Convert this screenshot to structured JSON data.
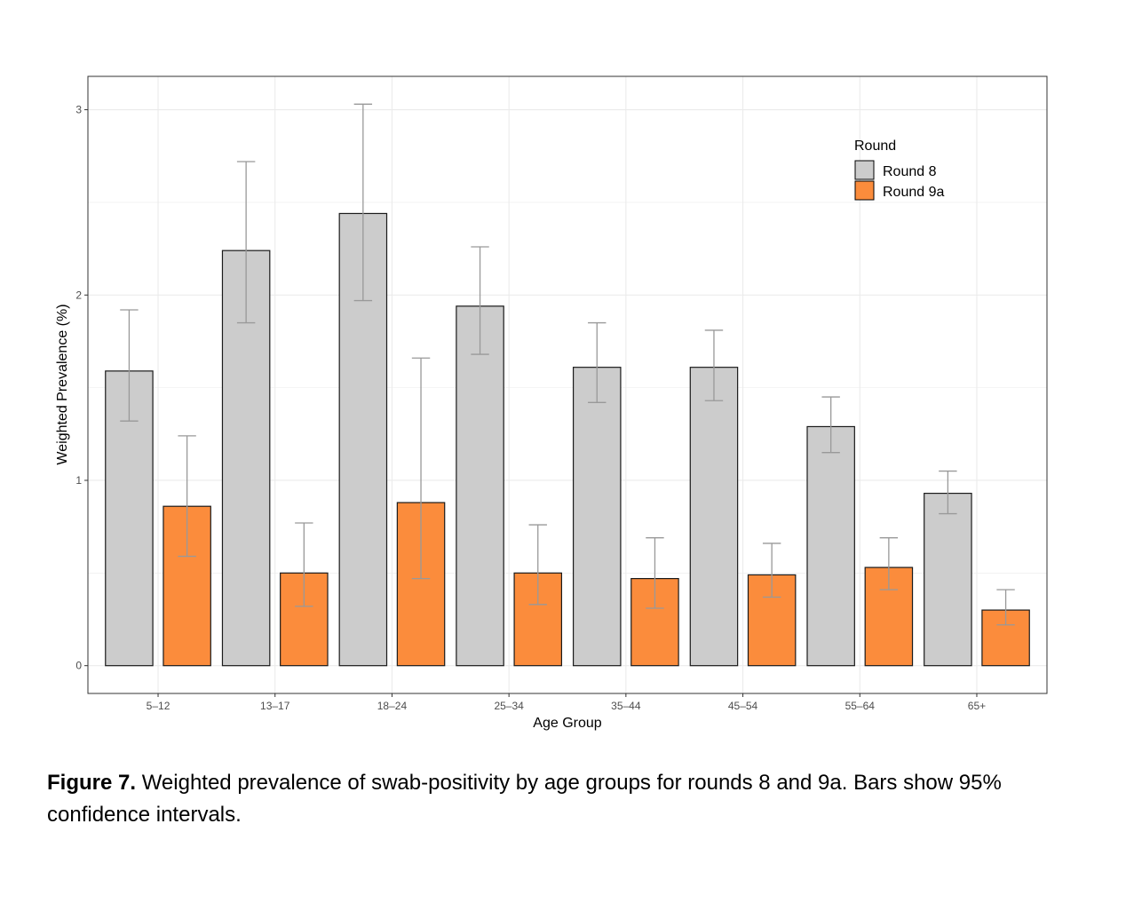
{
  "chart_data": {
    "type": "bar",
    "categories": [
      "5–12",
      "13–17",
      "18–24",
      "25–34",
      "35–44",
      "45–54",
      "55–64",
      "65+"
    ],
    "series": [
      {
        "name": "Round 8",
        "color": "#cccccc",
        "values": [
          1.59,
          2.24,
          2.44,
          1.94,
          1.61,
          1.61,
          1.29,
          0.93
        ],
        "lower": [
          1.32,
          1.85,
          1.97,
          1.68,
          1.42,
          1.43,
          1.15,
          0.82
        ],
        "upper": [
          1.92,
          2.72,
          3.03,
          2.26,
          1.85,
          1.81,
          1.45,
          1.05
        ]
      },
      {
        "name": "Round 9a",
        "color": "#fb8c3c",
        "values": [
          0.86,
          0.5,
          0.88,
          0.5,
          0.47,
          0.49,
          0.53,
          0.3
        ],
        "lower": [
          0.59,
          0.32,
          0.47,
          0.33,
          0.31,
          0.37,
          0.41,
          0.22
        ],
        "upper": [
          1.24,
          0.77,
          1.66,
          0.76,
          0.69,
          0.66,
          0.69,
          0.41
        ]
      }
    ],
    "xlabel": "Age Group",
    "ylabel": "Weighted Prevalence (%)",
    "ylim": [
      -0.15,
      3.18
    ],
    "yticks": [
      0,
      1,
      2,
      3
    ],
    "legend": {
      "title": "Round",
      "placement": "top-right"
    },
    "grid": true
  },
  "caption": {
    "label": "Figure 7.",
    "text": " Weighted prevalence of swab-positivity by age groups for rounds 8 and 9a. Bars show 95% confidence intervals."
  }
}
